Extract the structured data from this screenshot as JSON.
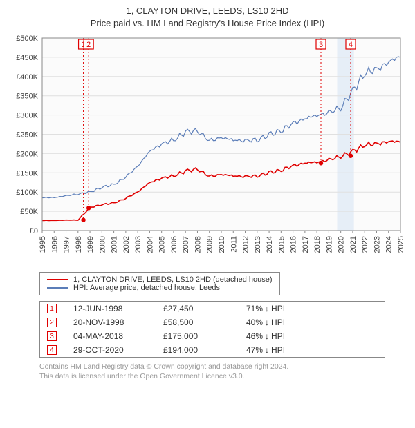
{
  "title": {
    "line1": "1, CLAYTON DRIVE, LEEDS, LS10 2HD",
    "line2": "Price paid vs. HM Land Registry's House Price Index (HPI)"
  },
  "chart": {
    "type": "line",
    "plot_bg_color": "#fbfbfb",
    "grid_color": "#e0e0e0",
    "axis_color": "#888888",
    "x_axis": {
      "start_year": 1995,
      "end_year": 2025,
      "ticks": [
        1995,
        1996,
        1997,
        1998,
        1999,
        2000,
        2001,
        2002,
        2003,
        2004,
        2005,
        2006,
        2007,
        2008,
        2009,
        2010,
        2011,
        2012,
        2013,
        2014,
        2015,
        2016,
        2017,
        2018,
        2019,
        2020,
        2021,
        2022,
        2023,
        2024,
        2025
      ],
      "label_fontsize": 11
    },
    "y_axis": {
      "min": 0,
      "max": 500000,
      "tick_step": 50000,
      "tick_labels": [
        "£0",
        "£50K",
        "£100K",
        "£150K",
        "£200K",
        "£250K",
        "£300K",
        "£350K",
        "£400K",
        "£450K",
        "£500K"
      ],
      "label_fontsize": 11
    },
    "series_blue": {
      "color": "#5b7db8",
      "label": "HPI: Average price, detached house, Leeds",
      "line_width": 1.2,
      "data_yearly": {
        "1995": 85000,
        "1996": 86000,
        "1997": 90000,
        "1998": 95000,
        "1999": 100000,
        "2000": 112000,
        "2001": 120000,
        "2002": 138000,
        "2003": 168000,
        "2004": 205000,
        "2005": 225000,
        "2006": 235000,
        "2007": 255000,
        "2008": 260000,
        "2009": 232000,
        "2010": 242000,
        "2011": 235000,
        "2012": 233000,
        "2013": 236000,
        "2014": 248000,
        "2015": 260000,
        "2016": 278000,
        "2017": 290000,
        "2018": 300000,
        "2019": 305000,
        "2020": 320000,
        "2021": 362000,
        "2022": 408000,
        "2023": 420000,
        "2024": 435000,
        "2025": 455000
      }
    },
    "series_red": {
      "color": "#e00000",
      "label": "1, CLAYTON DRIVE, LEEDS, LS10 2HD (detached house)",
      "line_width": 1.6,
      "segments": [
        {
          "from_year": 1995,
          "from_val": 26000,
          "to_year": 1998.45,
          "to_val": 27450
        },
        {
          "from_year": 1998.45,
          "from_val": 27450,
          "to_year": 1998.89,
          "to_val": 58500
        },
        {
          "from_year": 1998.89,
          "from_val": 58500,
          "to_year": 2018.34,
          "to_val": 175000
        },
        {
          "from_year": 2018.34,
          "from_val": 175000,
          "to_year": 2020.83,
          "to_val": 194000
        },
        {
          "from_year": 2020.83,
          "from_val": 194000,
          "to_year": 2025,
          "to_val": 232000
        }
      ],
      "path_yearly": {
        "1995": 26000,
        "1996": 26500,
        "1997": 27000,
        "1998": 27300,
        "1999": 60000,
        "2000": 67000,
        "2001": 72000,
        "2002": 83000,
        "2003": 101000,
        "2004": 124000,
        "2005": 136000,
        "2006": 142000,
        "2007": 154000,
        "2008": 160000,
        "2009": 140000,
        "2010": 146000,
        "2011": 142000,
        "2012": 140000,
        "2013": 142000,
        "2014": 150000,
        "2015": 157000,
        "2016": 168000,
        "2017": 175000,
        "2018": 178000,
        "2019": 183000,
        "2020": 193000,
        "2021": 205000,
        "2022": 222000,
        "2023": 226000,
        "2024": 230000,
        "2025": 232000
      }
    },
    "markers": [
      {
        "num": "1",
        "year": 1998.45,
        "val": 27450
      },
      {
        "num": "2",
        "year": 1998.89,
        "val": 58500
      },
      {
        "num": "3",
        "year": 2018.34,
        "val": 175000
      },
      {
        "num": "4",
        "year": 2020.83,
        "val": 194000
      }
    ],
    "highlight_region": {
      "from_year": 2019.7,
      "to_year": 2021.1,
      "color": "#d8e6f5"
    }
  },
  "legend": {
    "items": [
      {
        "color": "#e00000",
        "label": "1, CLAYTON DRIVE, LEEDS, LS10 2HD (detached house)"
      },
      {
        "color": "#5b7db8",
        "label": "HPI: Average price, detached house, Leeds"
      }
    ]
  },
  "transactions": [
    {
      "num": "1",
      "date": "12-JUN-1998",
      "price": "£27,450",
      "pct": "71%",
      "dir": "↓",
      "vs": "HPI"
    },
    {
      "num": "2",
      "date": "20-NOV-1998",
      "price": "£58,500",
      "pct": "40%",
      "dir": "↓",
      "vs": "HPI"
    },
    {
      "num": "3",
      "date": "04-MAY-2018",
      "price": "£175,000",
      "pct": "46%",
      "dir": "↓",
      "vs": "HPI"
    },
    {
      "num": "4",
      "date": "29-OCT-2020",
      "price": "£194,000",
      "pct": "47%",
      "dir": "↓",
      "vs": "HPI"
    }
  ],
  "footer": {
    "line1": "Contains HM Land Registry data © Crown copyright and database right 2024.",
    "line2": "This data is licensed under the Open Government Licence v3.0."
  }
}
